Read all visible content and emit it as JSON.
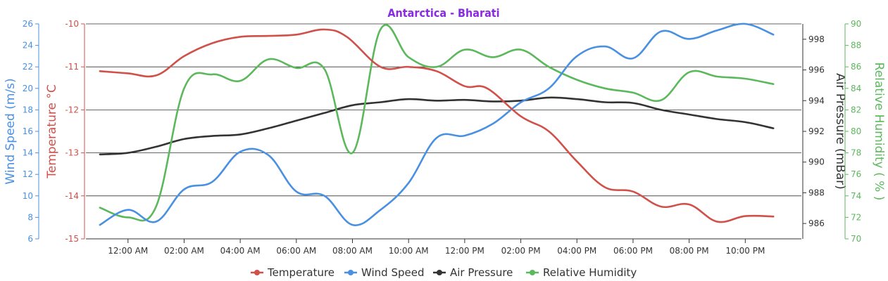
{
  "chart_data": {
    "type": "line",
    "title": "Antarctica - Bharati",
    "x_tick_labels": [
      "12:00 AM",
      "02:00 AM",
      "04:00 AM",
      "06:00 AM",
      "08:00 AM",
      "10:00 AM",
      "12:00 PM",
      "02:00 PM",
      "04:00 PM",
      "06:00 PM",
      "08:00 PM",
      "10:00 PM"
    ],
    "x_tick_hours": [
      0,
      2,
      4,
      6,
      8,
      10,
      12,
      14,
      16,
      18,
      20,
      22
    ],
    "x_range_hours": [
      -1.5,
      24
    ],
    "axes": {
      "wind": {
        "label": "Wind Speed (m/s)",
        "color": "#4a90e2",
        "range": [
          6,
          26
        ],
        "ticks": [
          6,
          8,
          10,
          12,
          14,
          16,
          18,
          20,
          22,
          24,
          26
        ],
        "side": "left"
      },
      "temp": {
        "label": "Temperature °C",
        "color": "#d0504a",
        "range": [
          -15,
          -10
        ],
        "ticks": [
          -15,
          -14,
          -13,
          -12,
          -11,
          -10
        ],
        "side": "left"
      },
      "pressure": {
        "label": "Air Pressure (mBar)",
        "color": "#333333",
        "range": [
          985,
          999
        ],
        "ticks": [
          986,
          988,
          990,
          992,
          994,
          996,
          998
        ],
        "side": "right"
      },
      "humidity": {
        "label": "Relative Humidity ( % )",
        "color": "#5cb85c",
        "range": [
          70,
          90
        ],
        "ticks": [
          70,
          72,
          74,
          76,
          78,
          80,
          82,
          84,
          86,
          88,
          90
        ],
        "side": "right"
      }
    },
    "series": [
      {
        "name": "Temperature",
        "axis": "temp",
        "color": "#d0504a",
        "x": [
          -1,
          0,
          1,
          2,
          3,
          4,
          5,
          6,
          7,
          7.8,
          9,
          10,
          11,
          12,
          12.8,
          14,
          15,
          16,
          17,
          18,
          19,
          20,
          21,
          22,
          23
        ],
        "values": [
          -11.1,
          -11.15,
          -11.2,
          -10.75,
          -10.45,
          -10.3,
          -10.28,
          -10.25,
          -10.13,
          -10.3,
          -11.0,
          -11.0,
          -11.1,
          -11.45,
          -11.5,
          -12.15,
          -12.5,
          -13.2,
          -13.8,
          -13.9,
          -14.25,
          -14.2,
          -14.6,
          -14.47,
          -14.48
        ]
      },
      {
        "name": "Wind Speed",
        "axis": "wind",
        "color": "#4a90e2",
        "x": [
          -1,
          0,
          1,
          2,
          3,
          4,
          5,
          6,
          7,
          8,
          9,
          10,
          11,
          12,
          13,
          14,
          15,
          16,
          17,
          18,
          19,
          20,
          21,
          22,
          23
        ],
        "values": [
          7.3,
          8.7,
          7.6,
          10.6,
          11.3,
          14.1,
          13.8,
          10.4,
          10.0,
          7.3,
          8.7,
          11.2,
          15.4,
          15.6,
          16.7,
          18.7,
          20.0,
          23.0,
          23.9,
          22.8,
          25.3,
          24.6,
          25.4,
          26.0,
          25.0
        ]
      },
      {
        "name": "Air Pressure",
        "axis": "pressure",
        "color": "#333333",
        "x": [
          -1,
          0,
          1,
          2,
          3,
          4,
          5,
          6,
          7,
          8,
          9,
          10,
          11,
          12,
          13,
          14,
          15,
          16,
          17,
          18,
          19,
          20,
          21,
          22,
          23
        ],
        "values": [
          990.5,
          990.6,
          991.0,
          991.5,
          991.7,
          991.8,
          992.2,
          992.7,
          993.2,
          993.7,
          993.9,
          994.1,
          994.0,
          994.05,
          993.95,
          994.0,
          994.2,
          994.1,
          993.9,
          993.85,
          993.4,
          993.1,
          992.8,
          992.6,
          992.2
        ]
      },
      {
        "name": "Relative Humidity",
        "axis": "humidity",
        "color": "#5cb85c",
        "x": [
          -1,
          0,
          1,
          2,
          3,
          4,
          5,
          6,
          7,
          8,
          9,
          10,
          11,
          12,
          13,
          14,
          15,
          16,
          17,
          18,
          19,
          20,
          21,
          22,
          23
        ],
        "values": [
          72.9,
          72.0,
          73.0,
          84.0,
          85.3,
          84.7,
          86.7,
          85.9,
          85.8,
          78.0,
          89.5,
          86.9,
          86.0,
          87.6,
          86.9,
          87.6,
          86.0,
          84.8,
          84.0,
          83.6,
          82.9,
          85.5,
          85.1,
          84.9,
          84.4
        ]
      }
    ],
    "legend": [
      "Temperature",
      "Wind Speed",
      "Air Pressure",
      "Relative Humidity"
    ],
    "legend_position": "bottom-center",
    "grid": "horizontal"
  }
}
